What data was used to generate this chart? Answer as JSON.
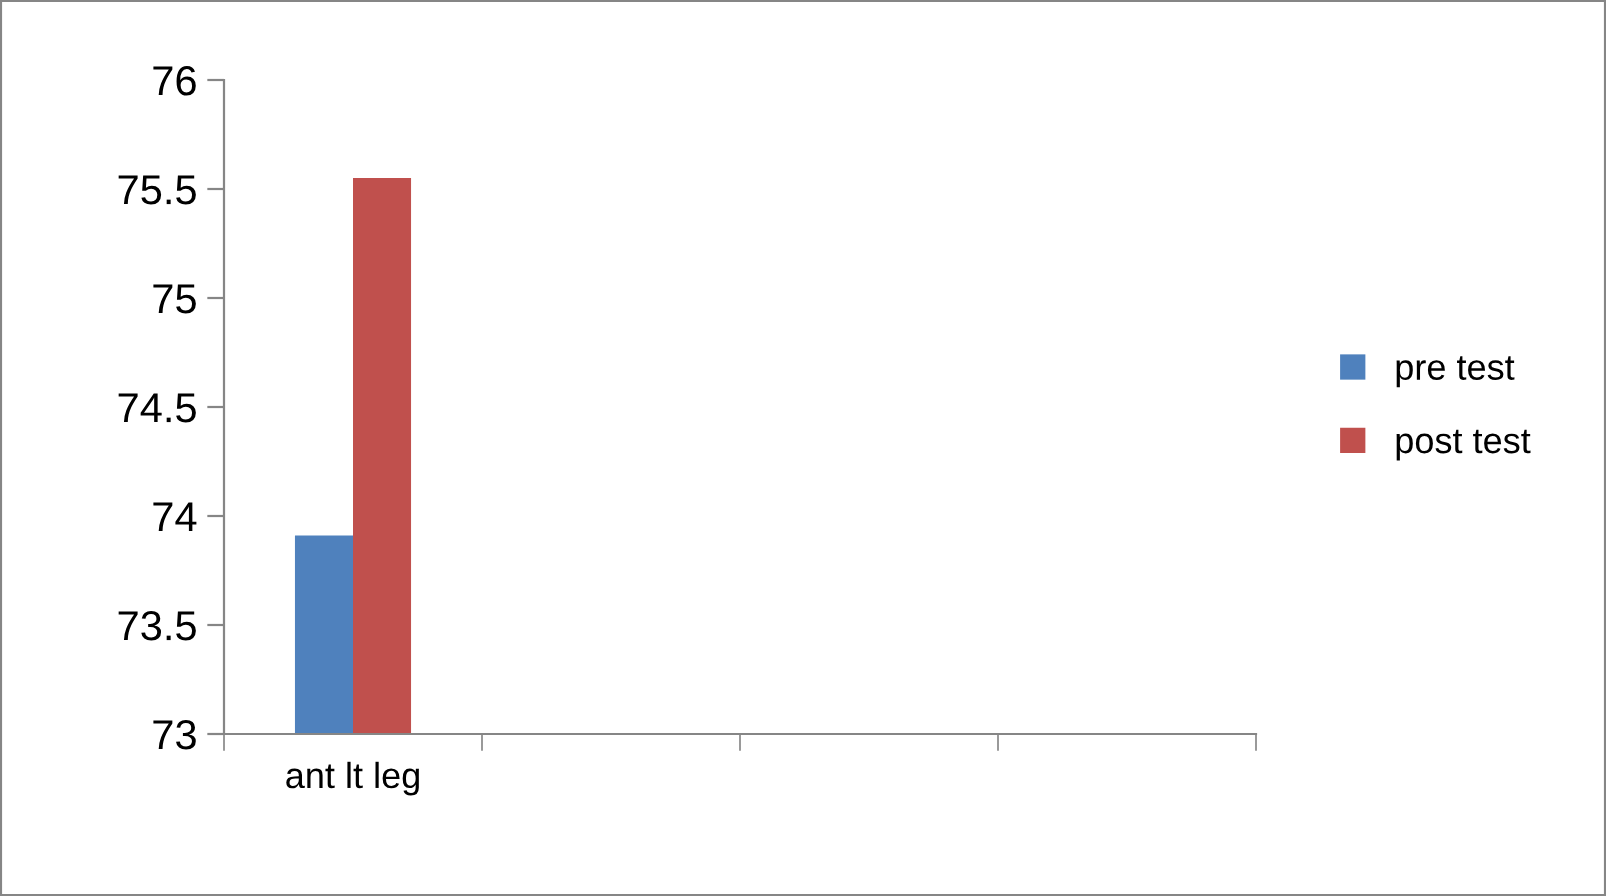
{
  "chart_data": {
    "type": "bar",
    "categories": [
      "ant lt leg",
      null,
      null,
      null
    ],
    "series": [
      {
        "name": "pre test",
        "color": "#4f81bd",
        "values": [
          73.91,
          null,
          null,
          null
        ]
      },
      {
        "name": "post test",
        "color": "#c0504d",
        "values": [
          75.55,
          null,
          null,
          null
        ]
      }
    ],
    "ylim": [
      73,
      76
    ],
    "yticks": [
      73,
      73.5,
      74,
      74.5,
      75,
      75.5,
      76
    ],
    "grid": false,
    "legend": "right"
  }
}
